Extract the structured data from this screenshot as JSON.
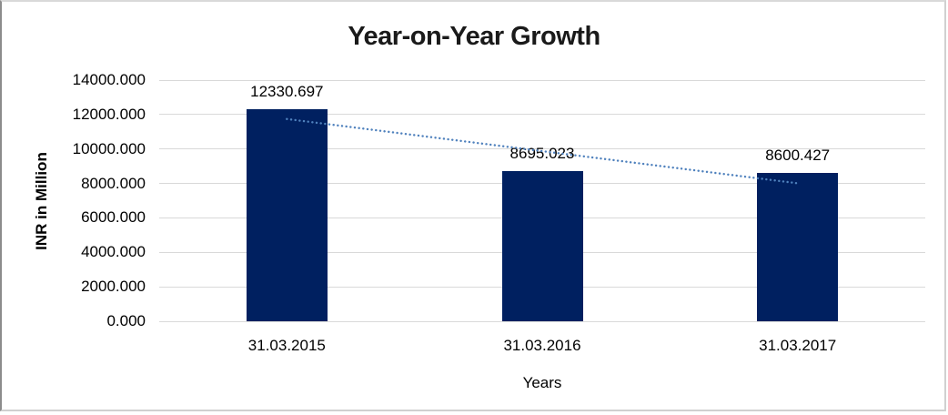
{
  "chart_data": {
    "type": "bar",
    "title": "Year-on-Year Growth",
    "xlabel": "Years",
    "ylabel": "INR in Million",
    "categories": [
      "31.03.2015",
      "31.03.2016",
      "31.03.2017"
    ],
    "values": [
      12330.697,
      8695.023,
      8600.427
    ],
    "data_labels": [
      "12330.697",
      "8695.023",
      "8600.427"
    ],
    "ylim": [
      0,
      14000
    ],
    "ytick_interval": 2000,
    "ytick_labels": [
      "0.000",
      "2000.000",
      "4000.000",
      "6000.000",
      "8000.000",
      "10000.000",
      "12000.000",
      "14000.000"
    ],
    "grid": true,
    "legend_position": "none",
    "bar_color": "#002060",
    "gridline_color": "#d9d9d9",
    "trendline": {
      "type": "linear",
      "style": "dotted",
      "color": "#4f81bd"
    }
  }
}
